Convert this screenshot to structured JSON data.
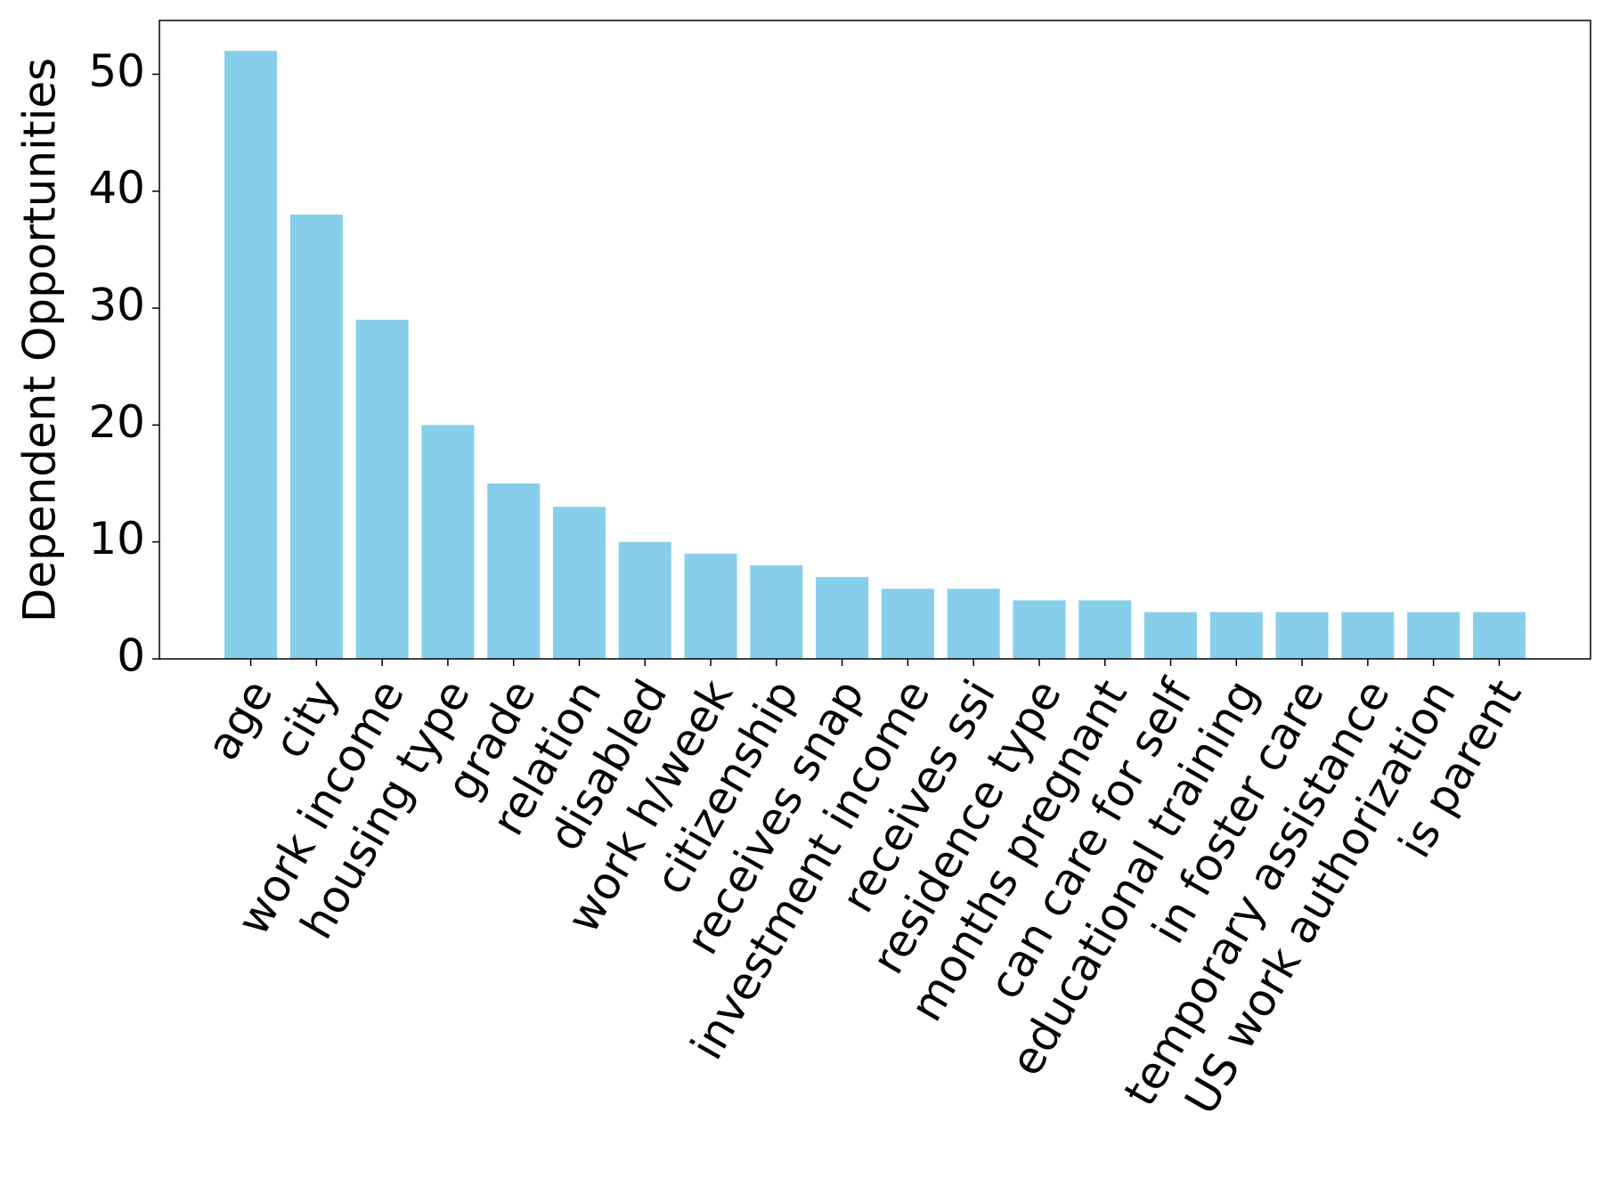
{
  "chart_data": {
    "type": "bar",
    "y_label": "Dependent Opportunities",
    "categories": [
      "age",
      "city",
      "work income",
      "housing type",
      "grade",
      "relation",
      "disabled",
      "work h/week",
      "citizenship",
      "receives snap",
      "investment income",
      "receives ssi",
      "residence type",
      "months pregnant",
      "can care for self",
      "educational training",
      "in foster care",
      "temporary assistance",
      "US work authorization",
      "is parent"
    ],
    "values": [
      52,
      38,
      29,
      20,
      15,
      13,
      10,
      9,
      8,
      7,
      6,
      6,
      5,
      5,
      4,
      4,
      4,
      4,
      4,
      4
    ],
    "color": "#87ceeb",
    "ylim": [
      0,
      54.6
    ],
    "yticks": [
      0,
      10,
      20,
      30,
      40,
      50
    ],
    "grid": false
  }
}
